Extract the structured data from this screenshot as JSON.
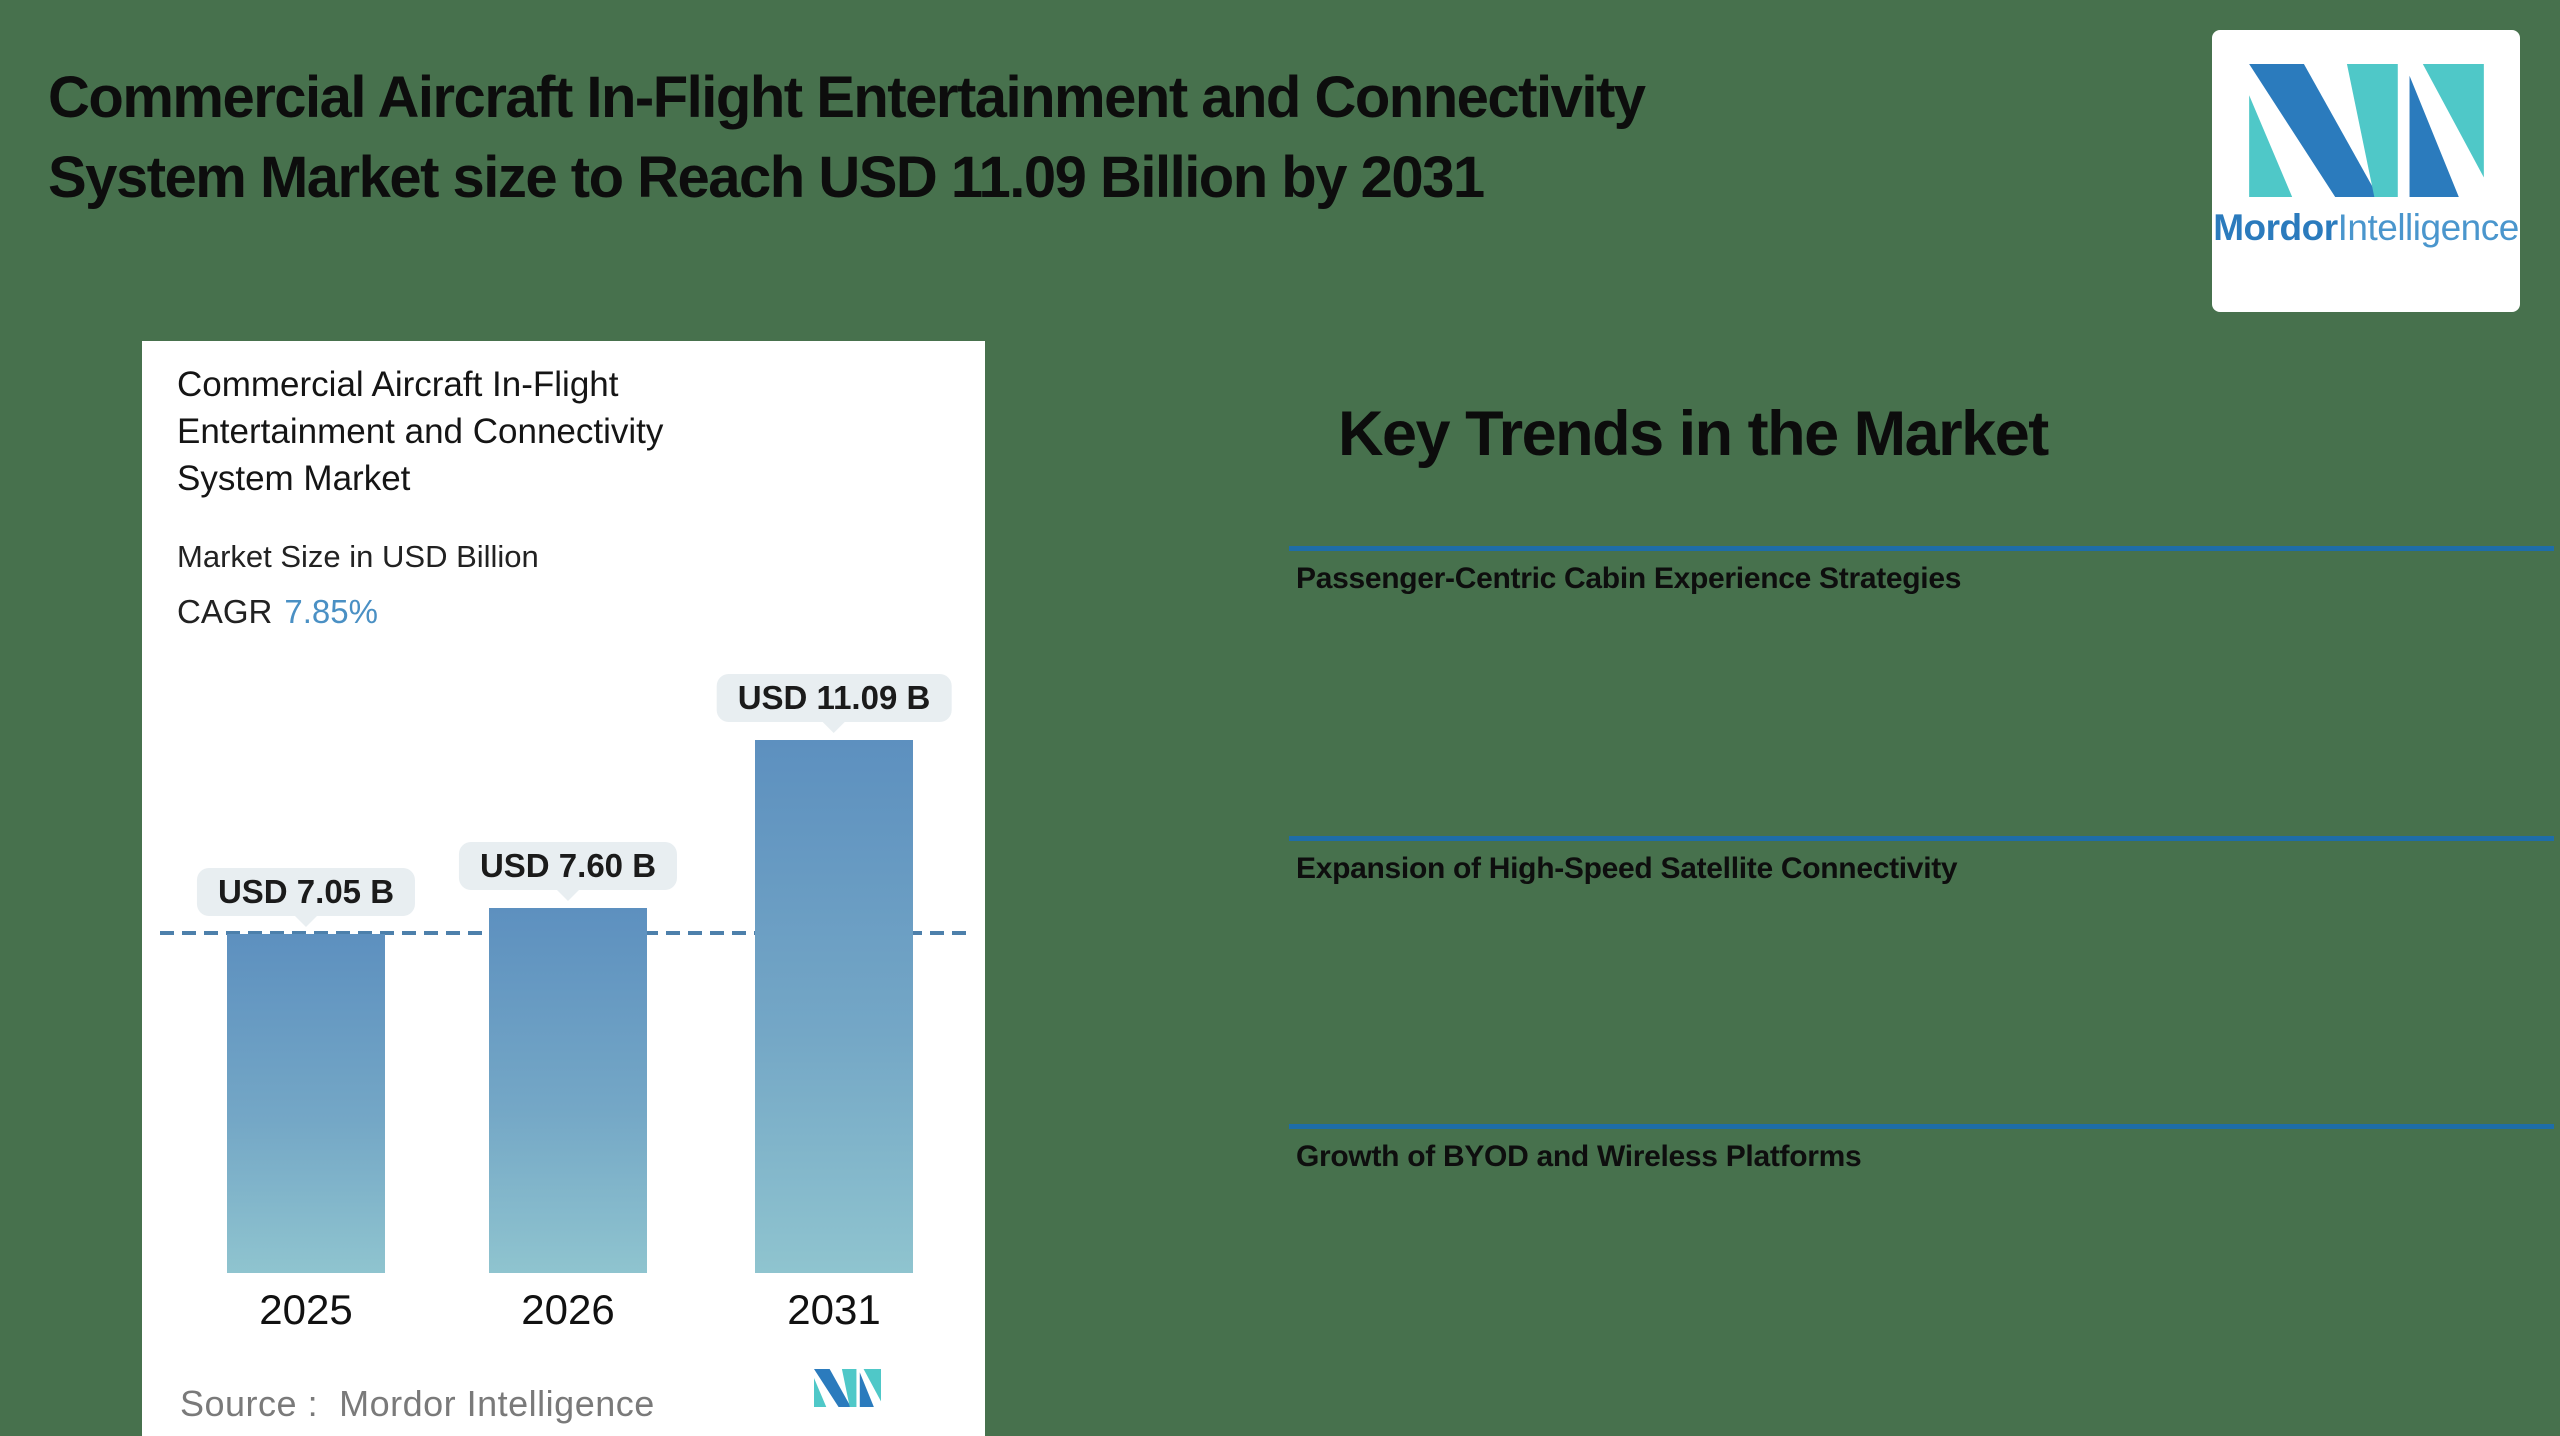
{
  "page": {
    "background": "#47714d"
  },
  "header": {
    "title_line1": "Commercial Aircraft In-Flight Entertainment and Connectivity",
    "title_line2": "System Market size to Reach USD 11.09 Billion by 2031"
  },
  "brand": {
    "name_bold": "Mordor",
    "name_regular": "Intelligence"
  },
  "chart_card": {
    "title_lines": [
      "Commercial Aircraft In-Flight",
      "Entertainment and Connectivity",
      "System Market"
    ],
    "subtitle": "Market Size in USD Billion",
    "cagr_label": "CAGR",
    "cagr_value": "7.85%",
    "source_label": "Source :",
    "source_value": "Mordor Intelligence"
  },
  "key_trends": {
    "heading": "Key Trends in the Market",
    "items": [
      {
        "label": "Passenger-Centric Cabin Experience Strategies"
      },
      {
        "label": "Expansion of High-Speed Satellite Connectivity"
      },
      {
        "label": "Growth of BYOD and Wireless Platforms"
      }
    ]
  },
  "chart_data": {
    "type": "bar",
    "title": "Commercial Aircraft In-Flight Entertainment and Connectivity System Market",
    "subtitle": "Market Size in USD Billion",
    "cagr_percent": 7.85,
    "categories": [
      "2025",
      "2026",
      "2031"
    ],
    "values": [
      7.05,
      7.6,
      11.09
    ],
    "bar_labels": [
      "USD 7.05 B",
      "USD 7.60 B",
      "USD 11.09 B"
    ],
    "reference_line_value": 7.05,
    "ylim": [
      0,
      11.5
    ],
    "grid": false,
    "legend": false,
    "colors": {
      "bar_top": "#5d90bf",
      "bar_bottom": "#8fc4cf",
      "dashed_line": "#4d80ab",
      "bubble_bg": "#e8eef1",
      "divider_blue": "#1e6da8",
      "cagr_blue": "#4a90c4",
      "brand_blue": "#2b7bbd",
      "brand_teal": "#4fc8c8"
    }
  }
}
